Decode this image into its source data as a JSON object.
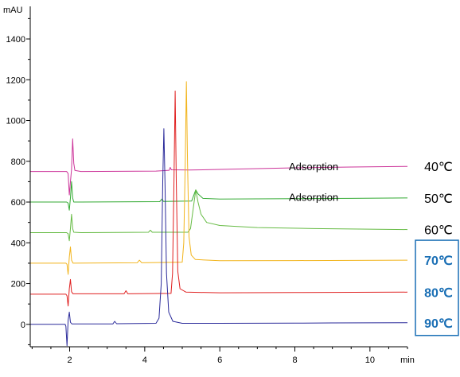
{
  "chart_data": {
    "type": "line",
    "x_unit": "min",
    "y_unit": "mAU",
    "xlim": [
      0.95,
      11.0
    ],
    "ylim": [
      -110,
      1560
    ],
    "x_ticks": [
      2,
      4,
      6,
      8,
      10
    ],
    "y_ticks": [
      0,
      200,
      400,
      600,
      800,
      1000,
      1200,
      1400
    ],
    "grid": false,
    "annotations": [
      {
        "text": "Adsorption",
        "x": 8.5,
        "y": 775
      },
      {
        "text": "Adsorption",
        "x": 8.5,
        "y": 625
      }
    ],
    "highlight_color": "#1a6fb5",
    "series": [
      {
        "name": "40℃",
        "highlighted": false,
        "color": "#cc3399",
        "points": [
          [
            0.95,
            750
          ],
          [
            1.92,
            750
          ],
          [
            1.96,
            740
          ],
          [
            1.99,
            635
          ],
          [
            2.02,
            700
          ],
          [
            2.05,
            760
          ],
          [
            2.08,
            910
          ],
          [
            2.11,
            790
          ],
          [
            2.14,
            755
          ],
          [
            2.3,
            750
          ],
          [
            4.3,
            752
          ],
          [
            4.65,
            756
          ],
          [
            4.68,
            770
          ],
          [
            4.71,
            758
          ],
          [
            5.2,
            757
          ],
          [
            6.5,
            762
          ],
          [
            8.0,
            768
          ],
          [
            9.5,
            772
          ],
          [
            11.0,
            775
          ]
        ]
      },
      {
        "name": "50℃",
        "highlighted": false,
        "color": "#33aa33",
        "points": [
          [
            0.95,
            600
          ],
          [
            1.92,
            600
          ],
          [
            1.96,
            595
          ],
          [
            1.99,
            560
          ],
          [
            2.02,
            620
          ],
          [
            2.05,
            700
          ],
          [
            2.08,
            620
          ],
          [
            2.11,
            600
          ],
          [
            2.3,
            600
          ],
          [
            4.4,
            602
          ],
          [
            4.46,
            615
          ],
          [
            4.5,
            603
          ],
          [
            5.25,
            605
          ],
          [
            5.32,
            640
          ],
          [
            5.36,
            660
          ],
          [
            5.42,
            640
          ],
          [
            5.55,
            618
          ],
          [
            6.0,
            615
          ],
          [
            8.0,
            617
          ],
          [
            9.5,
            618
          ],
          [
            11.0,
            620
          ]
        ]
      },
      {
        "name": "60℃",
        "highlighted": false,
        "color": "#66bb44",
        "points": [
          [
            0.95,
            450
          ],
          [
            1.92,
            450
          ],
          [
            1.96,
            445
          ],
          [
            1.99,
            410
          ],
          [
            2.02,
            470
          ],
          [
            2.05,
            540
          ],
          [
            2.08,
            470
          ],
          [
            2.11,
            452
          ],
          [
            2.3,
            450
          ],
          [
            4.1,
            452
          ],
          [
            4.15,
            462
          ],
          [
            4.2,
            452
          ],
          [
            5.15,
            452
          ],
          [
            5.22,
            470
          ],
          [
            5.3,
            580
          ],
          [
            5.36,
            660
          ],
          [
            5.42,
            600
          ],
          [
            5.5,
            540
          ],
          [
            5.65,
            500
          ],
          [
            6.0,
            485
          ],
          [
            7.0,
            475
          ],
          [
            8.5,
            470
          ],
          [
            11.0,
            465
          ]
        ]
      },
      {
        "name": "70℃",
        "highlighted": true,
        "color": "#f2b41c",
        "points": [
          [
            0.95,
            300
          ],
          [
            1.9,
            300
          ],
          [
            1.93,
            295
          ],
          [
            1.96,
            245
          ],
          [
            1.99,
            330
          ],
          [
            2.02,
            380
          ],
          [
            2.05,
            315
          ],
          [
            2.09,
            300
          ],
          [
            3.8,
            302
          ],
          [
            3.86,
            315
          ],
          [
            3.92,
            302
          ],
          [
            5.0,
            305
          ],
          [
            5.04,
            400
          ],
          [
            5.08,
            800
          ],
          [
            5.11,
            1190
          ],
          [
            5.14,
            800
          ],
          [
            5.18,
            430
          ],
          [
            5.24,
            340
          ],
          [
            5.35,
            318
          ],
          [
            6.0,
            312
          ],
          [
            8.0,
            313
          ],
          [
            11.0,
            315
          ]
        ]
      },
      {
        "name": "80℃",
        "highlighted": true,
        "color": "#e02020",
        "points": [
          [
            0.95,
            148
          ],
          [
            1.9,
            148
          ],
          [
            1.93,
            140
          ],
          [
            1.96,
            90
          ],
          [
            1.99,
            175
          ],
          [
            2.02,
            220
          ],
          [
            2.05,
            160
          ],
          [
            2.09,
            150
          ],
          [
            3.45,
            150
          ],
          [
            3.5,
            165
          ],
          [
            3.55,
            150
          ],
          [
            4.7,
            152
          ],
          [
            4.74,
            250
          ],
          [
            4.78,
            700
          ],
          [
            4.81,
            1145
          ],
          [
            4.84,
            700
          ],
          [
            4.88,
            260
          ],
          [
            4.94,
            175
          ],
          [
            5.1,
            158
          ],
          [
            6.0,
            155
          ],
          [
            8.0,
            156
          ],
          [
            11.0,
            158
          ]
        ]
      },
      {
        "name": "90℃",
        "highlighted": true,
        "color": "#2a2a9a",
        "points": [
          [
            0.95,
            0
          ],
          [
            1.88,
            0
          ],
          [
            1.9,
            -10
          ],
          [
            1.93,
            -105
          ],
          [
            1.96,
            20
          ],
          [
            1.99,
            60
          ],
          [
            2.02,
            10
          ],
          [
            2.06,
            2
          ],
          [
            3.15,
            2
          ],
          [
            3.2,
            15
          ],
          [
            3.25,
            3
          ],
          [
            4.3,
            5
          ],
          [
            4.38,
            30
          ],
          [
            4.44,
            200
          ],
          [
            4.48,
            700
          ],
          [
            4.51,
            960
          ],
          [
            4.54,
            700
          ],
          [
            4.58,
            250
          ],
          [
            4.64,
            60
          ],
          [
            4.75,
            15
          ],
          [
            5.0,
            5
          ],
          [
            6.0,
            5
          ],
          [
            8.0,
            6
          ],
          [
            9.0,
            7
          ],
          [
            11.0,
            8
          ]
        ]
      }
    ]
  }
}
